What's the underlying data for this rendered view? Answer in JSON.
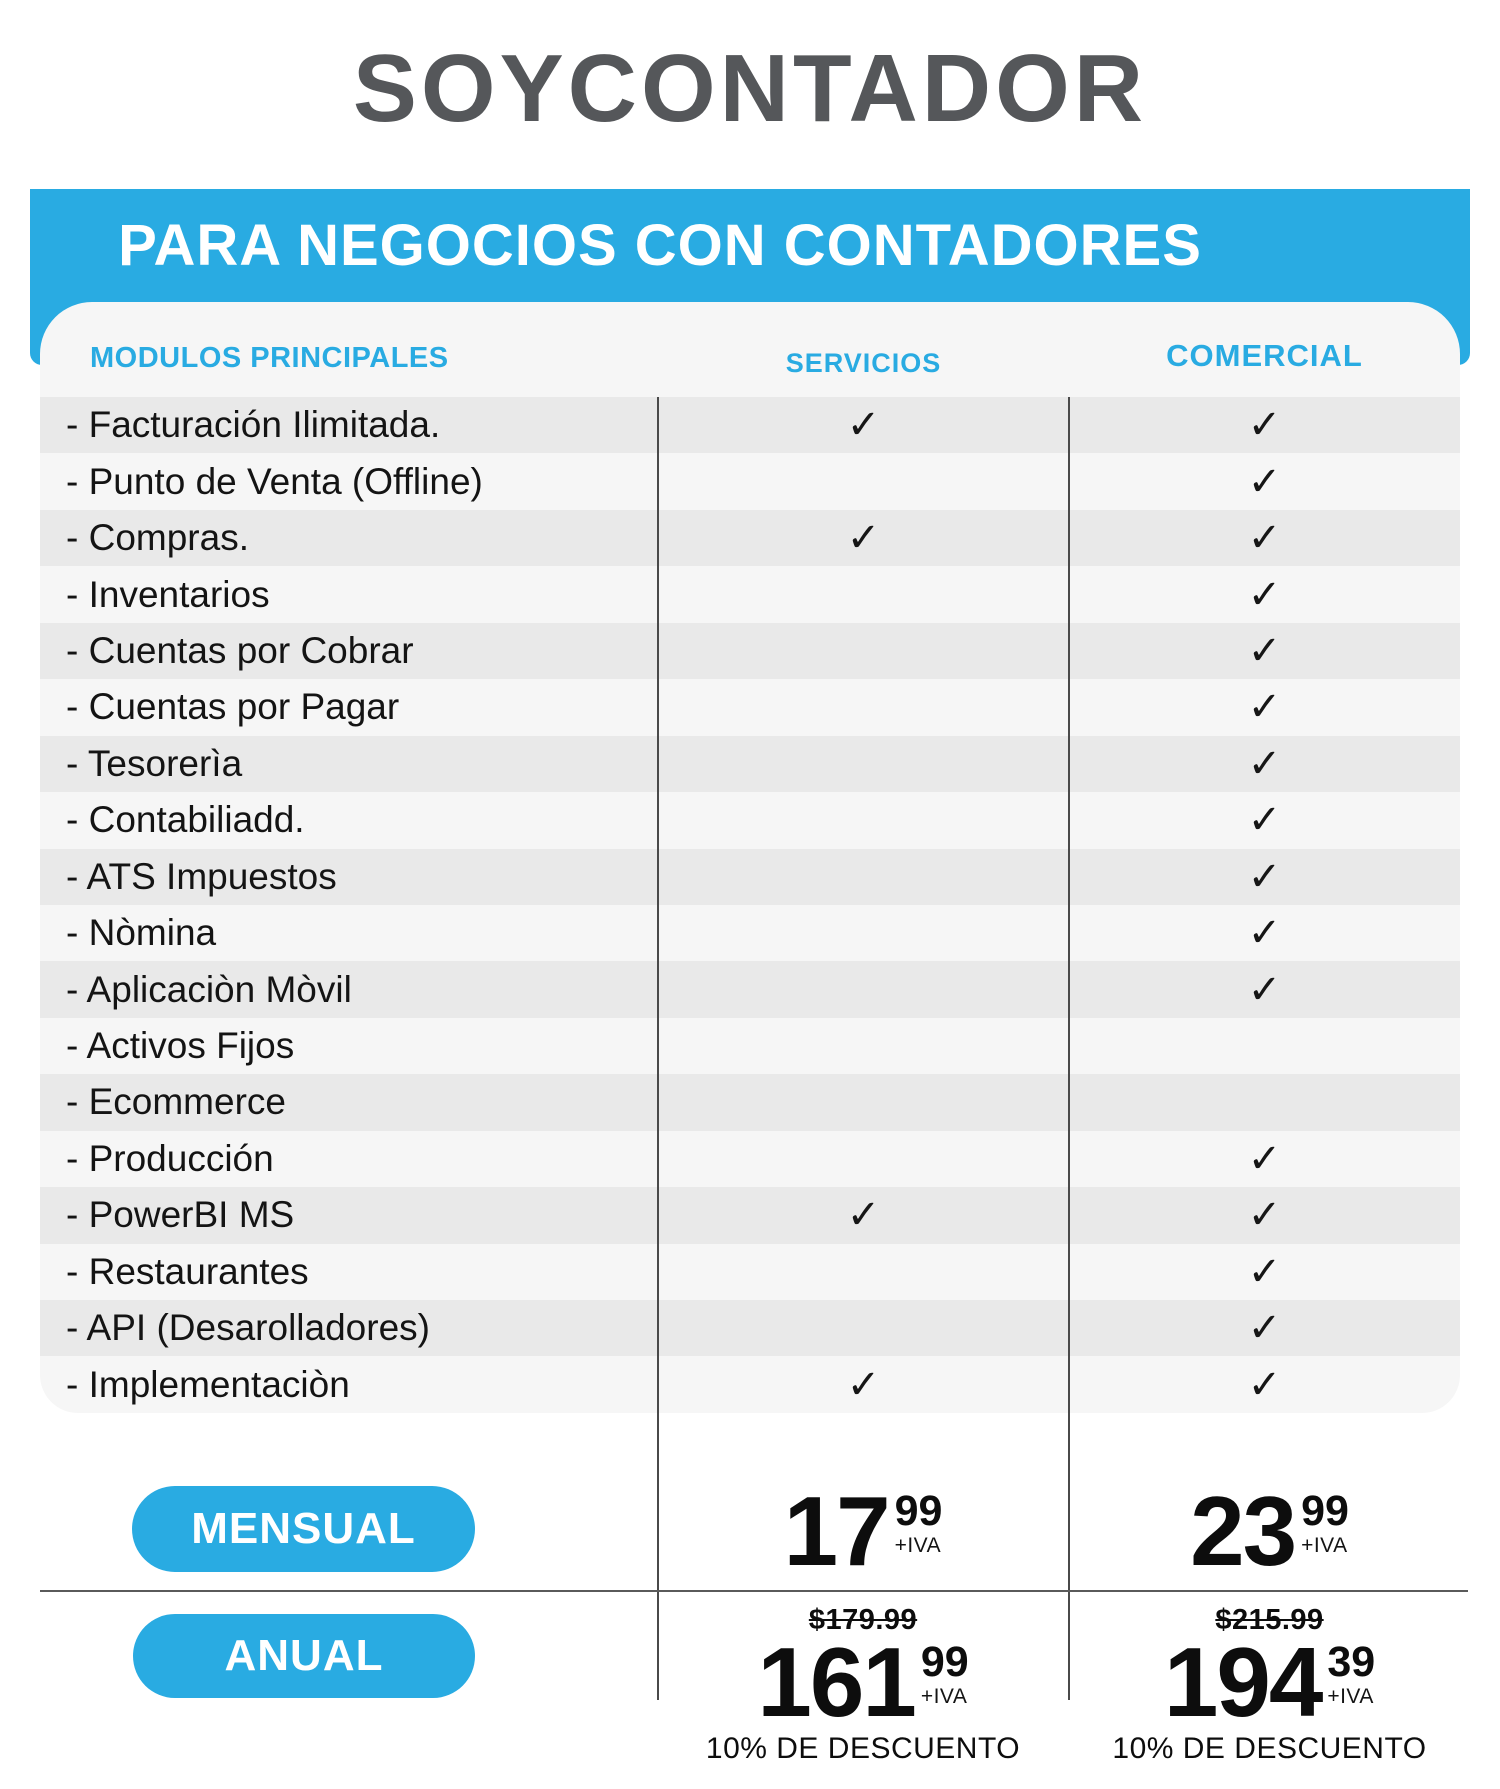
{
  "logo": "SOYCONTADOR",
  "banner": {
    "title": "PARA NEGOCIOS CON CONTADORES"
  },
  "table": {
    "headers": {
      "modulos": "MODULOS PRINCIPALES",
      "servicios": "SERVICIOS",
      "comercial": "COMERCIAL"
    },
    "rows": [
      {
        "label": "- Facturación Ilimitada.",
        "servicios": "✓",
        "comercial": "✓"
      },
      {
        "label": "- Punto de Venta (Offline)",
        "servicios": "",
        "comercial": "✓"
      },
      {
        "label": "- Compras.",
        "servicios": "✓",
        "comercial": "✓"
      },
      {
        "label": "- Inventarios",
        "servicios": "",
        "comercial": "✓"
      },
      {
        "label": "-  Cuentas por Cobrar",
        "servicios": "",
        "comercial": "✓"
      },
      {
        "label": "- Cuentas por Pagar",
        "servicios": "",
        "comercial": "✓"
      },
      {
        "label": "- Tesorerìa",
        "servicios": "",
        "comercial": "✓"
      },
      {
        "label": "- Contabiliadd.",
        "servicios": "",
        "comercial": "✓"
      },
      {
        "label": "- ATS Impuestos",
        "servicios": "",
        "comercial": "✓"
      },
      {
        "label": "- Nòmina",
        "servicios": "",
        "comercial": "✓"
      },
      {
        "label": "- Aplicaciòn Mòvil",
        "servicios": "",
        "comercial": "✓"
      },
      {
        "label": "- Activos Fijos",
        "servicios": "",
        "comercial": ""
      },
      {
        "label": "- Ecommerce",
        "servicios": "",
        "comercial": ""
      },
      {
        "label": "- Producción",
        "servicios": "",
        "comercial": "✓"
      },
      {
        "label": "- PowerBI MS",
        "servicios": "✓",
        "comercial": "✓"
      },
      {
        "label": "- Restaurantes",
        "servicios": "",
        "comercial": "✓"
      },
      {
        "label": "- API (Desarolladores)",
        "servicios": "",
        "comercial": "✓"
      },
      {
        "label": "- Implementaciòn",
        "servicios": "✓",
        "comercial": "✓"
      }
    ]
  },
  "pricing": {
    "monthly": {
      "button_label": "MENSUAL",
      "servicios": {
        "amount": "17",
        "cents": "99",
        "tax": "+IVA"
      },
      "comercial": {
        "amount": "23",
        "cents": "99",
        "tax": "+IVA"
      }
    },
    "annual": {
      "button_label": "ANUAL",
      "servicios": {
        "old_price": "$179.99",
        "amount": "161",
        "cents": "99",
        "tax": "+IVA",
        "discount": "10% DE DESCUENTO"
      },
      "comercial": {
        "old_price": "$215.99",
        "amount": "194",
        "cents": "39",
        "tax": "+IVA",
        "discount": "10% DE DESCUENTO"
      }
    }
  },
  "colors": {
    "accent_blue": "#29ABE2",
    "logo_gray": "#55575A",
    "row_stripe_gray": "#E9E9E9",
    "card_background": "#F6F6F6",
    "divider": "#4A4A4A",
    "text_dark": "#141414"
  }
}
